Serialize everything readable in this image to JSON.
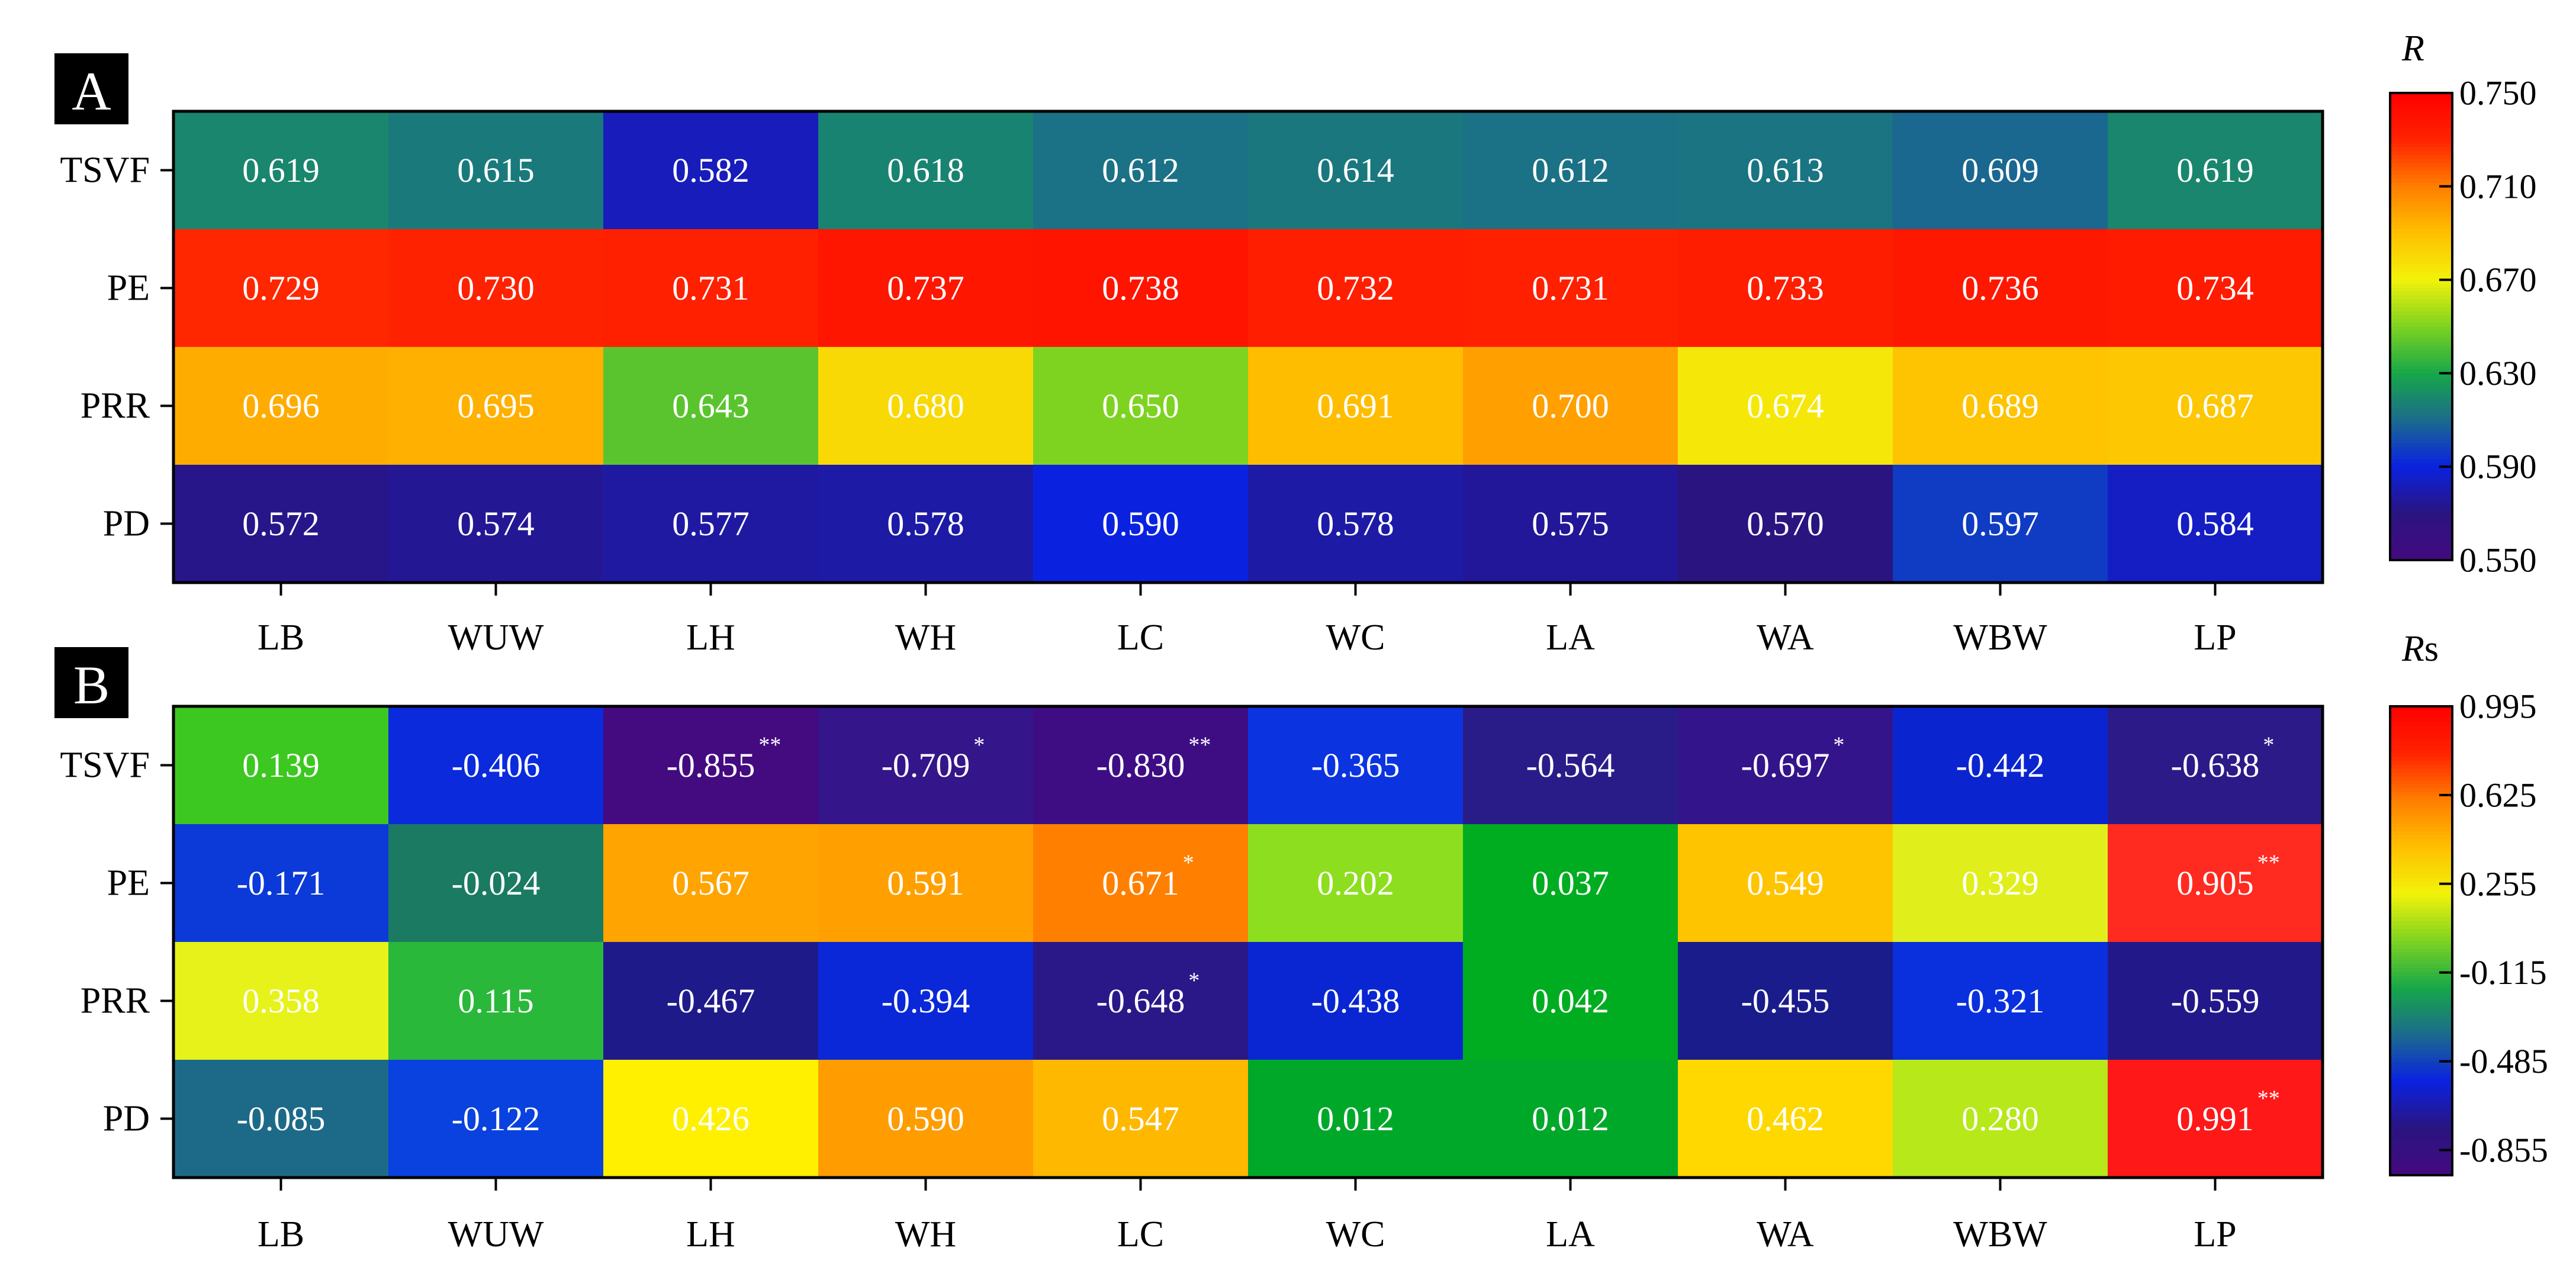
{
  "chart_data": [
    {
      "type": "heatmap",
      "panel_label": "A",
      "colorbar_label": "R",
      "rows": [
        "TSVF",
        "PE",
        "PRR",
        "PD"
      ],
      "columns": [
        "LB",
        "WUW",
        "LH",
        "WH",
        "LC",
        "WC",
        "LA",
        "WA",
        "WBW",
        "LP"
      ],
      "values": [
        [
          0.619,
          0.615,
          0.582,
          0.618,
          0.612,
          0.614,
          0.612,
          0.613,
          0.609,
          0.619
        ],
        [
          0.729,
          0.73,
          0.731,
          0.737,
          0.738,
          0.732,
          0.731,
          0.733,
          0.736,
          0.734
        ],
        [
          0.696,
          0.695,
          0.643,
          0.68,
          0.65,
          0.691,
          0.7,
          0.674,
          0.689,
          0.687
        ],
        [
          0.572,
          0.574,
          0.577,
          0.578,
          0.59,
          0.578,
          0.575,
          0.57,
          0.597,
          0.584
        ]
      ],
      "labels": [
        [
          "0.619",
          "0.615",
          "0.582",
          "0.618",
          "0.612",
          "0.614",
          "0.612",
          "0.613",
          "0.609",
          "0.619"
        ],
        [
          "0.729",
          "0.730",
          "0.731",
          "0.737",
          "0.738",
          "0.732",
          "0.731",
          "0.733",
          "0.736",
          "0.734"
        ],
        [
          "0.696",
          "0.695",
          "0.643",
          "0.680",
          "0.650",
          "0.691",
          "0.700",
          "0.674",
          "0.689",
          "0.687"
        ],
        [
          "0.572",
          "0.574",
          "0.577",
          "0.578",
          "0.590",
          "0.578",
          "0.575",
          "0.570",
          "0.597",
          "0.584"
        ]
      ],
      "significance": [
        [
          "",
          "",
          "",
          "",
          "",
          "",
          "",
          "",
          "",
          ""
        ],
        [
          "",
          "",
          "",
          "",
          "",
          "",
          "",
          "",
          "",
          ""
        ],
        [
          "",
          "",
          "",
          "",
          "",
          "",
          "",
          "",
          "",
          ""
        ],
        [
          "",
          "",
          "",
          "",
          "",
          "",
          "",
          "",
          "",
          ""
        ]
      ],
      "colorbar": {
        "min": 0.55,
        "max": 0.75,
        "ticks": [
          0.75,
          0.71,
          0.67,
          0.63,
          0.59,
          0.55
        ],
        "tick_labels": [
          "0.750",
          "0.710",
          "0.670",
          "0.630",
          "0.590",
          "0.550"
        ]
      },
      "colormap": [
        "#440a80",
        "#2a1480",
        "#0a22e0",
        "#1b6b8c",
        "#17a848",
        "#7ed321",
        "#f2f20a",
        "#ffc000",
        "#ff7e00",
        "#ff2200",
        "#ff0000"
      ]
    },
    {
      "type": "heatmap",
      "panel_label": "B",
      "colorbar_label": "Rs",
      "rows": [
        "TSVF",
        "PE",
        "PRR",
        "PD"
      ],
      "columns": [
        "LB",
        "WUW",
        "LH",
        "WH",
        "LC",
        "WC",
        "LA",
        "WA",
        "WBW",
        "LP"
      ],
      "values": [
        [
          0.139,
          -0.406,
          -0.855,
          -0.709,
          -0.83,
          -0.365,
          -0.564,
          -0.697,
          -0.442,
          -0.638
        ],
        [
          -0.171,
          -0.024,
          0.567,
          0.591,
          0.671,
          0.202,
          0.037,
          0.549,
          0.329,
          0.905
        ],
        [
          0.358,
          0.115,
          -0.467,
          -0.394,
          -0.648,
          -0.438,
          0.042,
          -0.455,
          -0.321,
          -0.559
        ],
        [
          -0.085,
          -0.122,
          0.426,
          0.59,
          0.547,
          0.012,
          0.012,
          0.462,
          0.28,
          0.991
        ]
      ],
      "labels": [
        [
          "0.139",
          "-0.406",
          "-0.855",
          "-0.709",
          "-0.830",
          "-0.365",
          "-0.564",
          "-0.697",
          "-0.442",
          "-0.638"
        ],
        [
          "-0.171",
          "-0.024",
          "0.567",
          "0.591",
          "0.671",
          "0.202",
          "0.037",
          "0.549",
          "0.329",
          "0.905"
        ],
        [
          "0.358",
          "0.115",
          "-0.467",
          "-0.394",
          "-0.648",
          "-0.438",
          "0.042",
          "-0.455",
          "-0.321",
          "-0.559"
        ],
        [
          "-0.085",
          "-0.122",
          "0.426",
          "0.590",
          "0.547",
          "0.012",
          "0.012",
          "0.462",
          "0.280",
          "0.991"
        ]
      ],
      "significance": [
        [
          "",
          "",
          "**",
          "*",
          "**",
          "",
          "",
          "*",
          "",
          "*"
        ],
        [
          "",
          "",
          "",
          "",
          "*",
          "",
          "",
          "",
          "",
          "**"
        ],
        [
          "",
          "",
          "",
          "",
          "*",
          "",
          "",
          "",
          "",
          ""
        ],
        [
          "",
          "",
          "",
          "",
          "",
          "",
          "",
          "",
          "",
          "**"
        ]
      ],
      "cell_colors": [
        [
          "#3cc820",
          "#0a2adc",
          "#440a80",
          "#35158a",
          "#3e0d84",
          "#0b34e0",
          "#2a1c88",
          "#34148a",
          "#0a25cf",
          "#2c1a88"
        ],
        [
          "#0b3ad8",
          "#1a7a62",
          "#ffa400",
          "#ffa000",
          "#ff8000",
          "#8ede20",
          "#00ad20",
          "#ffc400",
          "#e0ef1c",
          "#ff2a20"
        ],
        [
          "#e6f21a",
          "#2ab83a",
          "#1f1a8a",
          "#0a28d8",
          "#2a1888",
          "#0a26d2",
          "#00ad20",
          "#1a1c8c",
          "#0a30de",
          "#23188a"
        ],
        [
          "#1d6a88",
          "#0a42e0",
          "#fff000",
          "#ff9c00",
          "#ffb800",
          "#00a82a",
          "#00a82a",
          "#ffd800",
          "#b6e81a",
          "#ff1818"
        ]
      ],
      "colorbar": {
        "min": -0.96,
        "max": 0.995,
        "ticks": [
          0.995,
          0.625,
          0.255,
          -0.115,
          -0.485,
          -0.855
        ],
        "tick_labels": [
          "0.995",
          "0.625",
          "0.255",
          "-0.115",
          "-0.485",
          "-0.855"
        ]
      },
      "colormap": [
        "#440a80",
        "#2a1480",
        "#0a22e0",
        "#1b6b8c",
        "#17a848",
        "#7ed321",
        "#f2f20a",
        "#ffc000",
        "#ff7e00",
        "#ff2200",
        "#ff0000"
      ]
    }
  ]
}
